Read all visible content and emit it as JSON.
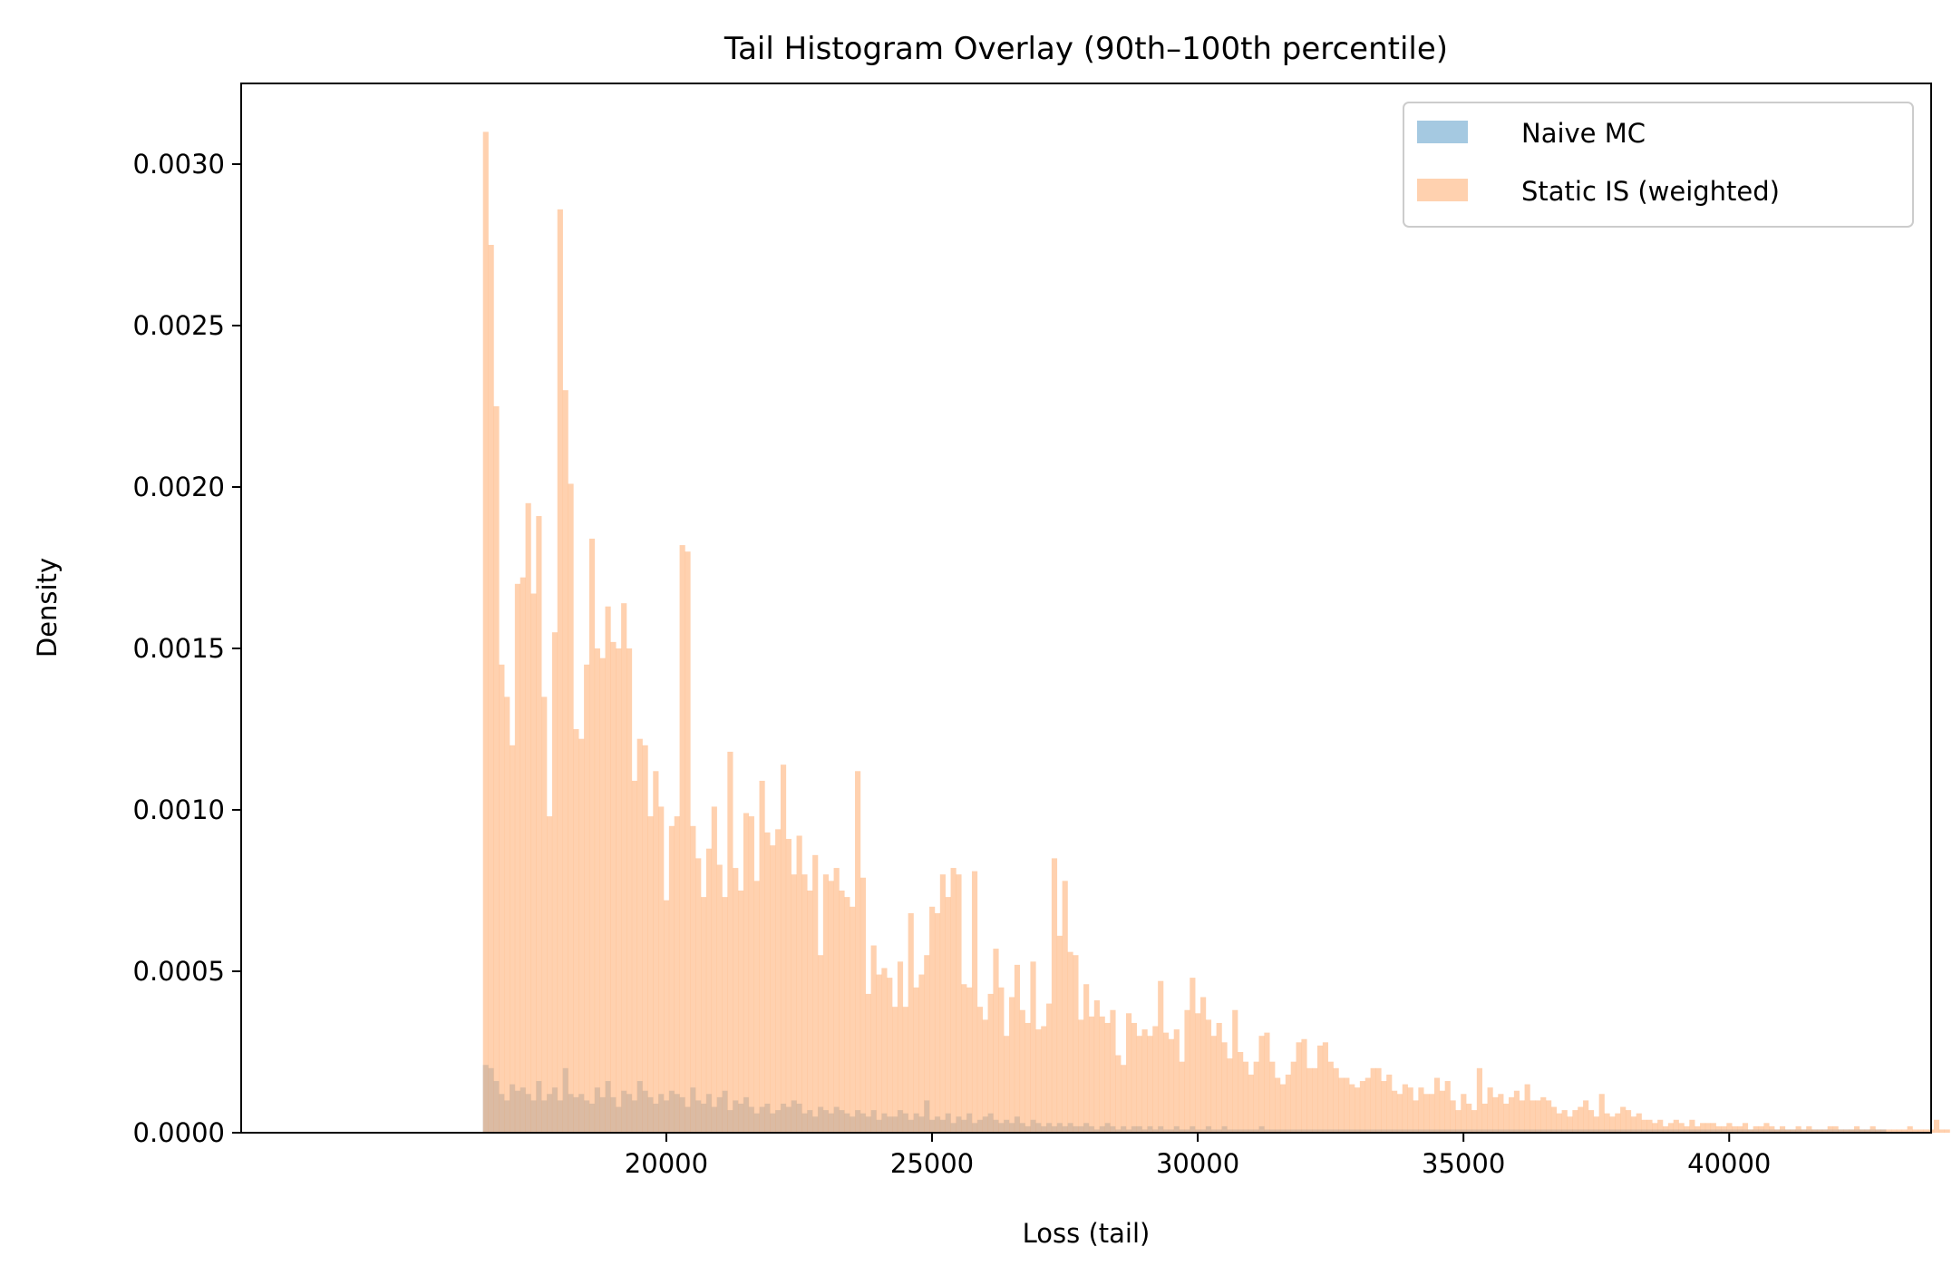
{
  "chart_data": {
    "type": "bar",
    "title": "Tail Histogram Overlay (90th–100th percentile)",
    "xlabel": "Loss (tail)",
    "ylabel": "Density",
    "xlim": [
      12000,
      43800
    ],
    "ylim": [
      0,
      0.00325
    ],
    "xticks": [
      20000,
      25000,
      30000,
      35000,
      40000
    ],
    "xtick_labels": [
      "20000",
      "25000",
      "30000",
      "35000",
      "40000"
    ],
    "yticks": [
      0,
      0.0005,
      0.001,
      0.0015,
      0.002,
      0.0025,
      0.003
    ],
    "ytick_labels": [
      "0.0000",
      "0.0005",
      "0.0010",
      "0.0015",
      "0.0020",
      "0.0025",
      "0.0030"
    ],
    "grid": false,
    "legend_position": "top-right",
    "bin_width": 100,
    "series": [
      {
        "name": "Naive MC",
        "color": "#1f77b4",
        "opacity": 0.4,
        "x_start": 16550,
        "values": [
          0.00021,
          0.0002,
          0.00016,
          0.00012,
          0.0001,
          0.00015,
          0.00013,
          0.00014,
          0.00012,
          0.0001,
          0.00016,
          0.0001,
          0.00012,
          0.00014,
          0.0001,
          0.0002,
          0.00012,
          0.00011,
          0.00012,
          0.0001,
          9e-05,
          0.00014,
          0.00011,
          0.00016,
          0.00011,
          8e-05,
          0.00013,
          0.00012,
          0.0001,
          0.00016,
          0.00013,
          0.00011,
          9e-05,
          0.00012,
          0.0001,
          0.00013,
          0.00012,
          0.00011,
          8e-05,
          0.00014,
          0.0001,
          9e-05,
          0.00012,
          8e-05,
          0.00011,
          0.00013,
          7e-05,
          0.0001,
          9e-05,
          0.00011,
          8e-05,
          6e-05,
          8e-05,
          9e-05,
          6e-05,
          7e-05,
          9e-05,
          8e-05,
          0.0001,
          9e-05,
          6e-05,
          7e-05,
          5e-05,
          8e-05,
          7e-05,
          6e-05,
          8e-05,
          7e-05,
          6e-05,
          5e-05,
          7e-05,
          6e-05,
          5e-05,
          7e-05,
          4e-05,
          6e-05,
          5e-05,
          5e-05,
          7e-05,
          6e-05,
          4e-05,
          6e-05,
          5e-05,
          0.0001,
          4e-05,
          5e-05,
          4e-05,
          6e-05,
          3e-05,
          5e-05,
          4e-05,
          6e-05,
          3e-05,
          4e-05,
          5e-05,
          6e-05,
          4e-05,
          3e-05,
          4e-05,
          3e-05,
          5e-05,
          3e-05,
          2e-05,
          4e-05,
          3e-05,
          2e-05,
          3e-05,
          2e-05,
          3e-05,
          2e-05,
          3e-05,
          2e-05,
          2e-05,
          3e-05,
          2e-05,
          1e-05,
          2e-05,
          3e-05,
          2e-05,
          1e-05,
          2e-05,
          1e-05,
          2e-05,
          2e-05,
          1e-05,
          2e-05,
          1e-05,
          2e-05,
          1e-05,
          1e-05,
          2e-05,
          1e-05,
          1e-05,
          2e-05,
          1e-05,
          1e-05,
          2e-05,
          1e-05,
          1e-05,
          2e-05,
          1e-05,
          1e-05,
          1e-05,
          1e-05,
          1e-05,
          1e-05,
          2e-05,
          1e-05,
          1e-05,
          1e-05,
          1e-05,
          1e-05,
          1e-05,
          1e-05,
          1e-05,
          1e-05,
          1e-05,
          1e-05,
          1e-05,
          1e-05,
          1e-05,
          1e-05,
          1e-05,
          1e-05,
          1e-05,
          1e-05,
          1e-05,
          1e-05,
          1e-05,
          1e-05,
          1e-05,
          1e-05,
          1e-05,
          1e-05,
          1e-05,
          1e-05,
          1e-05,
          1e-05,
          1e-05,
          1e-05,
          1e-05,
          1e-05,
          1e-05,
          1e-05,
          1e-05,
          1e-05,
          1e-05,
          1e-05,
          1e-05,
          1e-05,
          1e-05,
          1e-05,
          1e-05,
          1e-05,
          1e-05,
          1e-05,
          1e-05,
          1e-05,
          1e-05,
          1e-05,
          1e-05,
          1e-05,
          1e-05,
          1e-05,
          1e-05,
          1e-05,
          1e-05,
          1e-05,
          1e-05,
          1e-05,
          1e-05,
          1e-05,
          1e-05,
          1e-05,
          1e-05,
          1e-05,
          1e-05,
          1e-05,
          1e-05,
          1e-05,
          1e-05,
          1e-05,
          1e-05,
          1e-05,
          1e-05,
          1e-05,
          1e-05,
          1e-05,
          1e-05,
          1e-05,
          1e-05,
          1e-05,
          1e-05,
          1e-05,
          1e-05,
          1e-05,
          1e-05,
          1e-05,
          1e-05,
          1e-05,
          1e-05,
          1e-05,
          1e-05,
          1e-05,
          1e-05,
          1e-05,
          1e-05,
          1e-05,
          1e-05,
          1e-05,
          1e-05,
          1e-05,
          1e-05,
          1e-05,
          1e-05,
          1e-05,
          1e-05,
          1e-05,
          1e-05,
          1e-05,
          1e-05,
          1e-05,
          1e-05,
          1e-05
        ]
      },
      {
        "name": "Static IS (weighted)",
        "color": "#ffb27a",
        "opacity": 0.6,
        "x_start": 16550,
        "values": [
          0.0031,
          0.00275,
          0.00225,
          0.00145,
          0.00135,
          0.0012,
          0.0017,
          0.00172,
          0.00195,
          0.00167,
          0.00191,
          0.00135,
          0.00098,
          0.00155,
          0.00286,
          0.0023,
          0.00201,
          0.00125,
          0.00122,
          0.00145,
          0.00184,
          0.0015,
          0.00147,
          0.00163,
          0.00152,
          0.0015,
          0.00164,
          0.0015,
          0.00109,
          0.00122,
          0.0012,
          0.00098,
          0.00112,
          0.00101,
          0.00072,
          0.00095,
          0.00098,
          0.00182,
          0.0018,
          0.00095,
          0.00085,
          0.00073,
          0.00088,
          0.00101,
          0.00083,
          0.00073,
          0.00118,
          0.00082,
          0.00075,
          0.00099,
          0.00098,
          0.00078,
          0.00109,
          0.00093,
          0.00089,
          0.00094,
          0.00114,
          0.00091,
          0.0008,
          0.00092,
          0.0008,
          0.00075,
          0.00086,
          0.00055,
          0.0008,
          0.00078,
          0.00082,
          0.00075,
          0.00073,
          0.0007,
          0.00112,
          0.00079,
          0.00043,
          0.00058,
          0.00049,
          0.00051,
          0.00048,
          0.00039,
          0.00053,
          0.00039,
          0.00068,
          0.00045,
          0.00049,
          0.00055,
          0.0007,
          0.00068,
          0.0008,
          0.00073,
          0.00082,
          0.0008,
          0.00046,
          0.00045,
          0.00081,
          0.00039,
          0.00035,
          0.00043,
          0.00057,
          0.00045,
          0.0003,
          0.00042,
          0.00052,
          0.00038,
          0.00034,
          0.00053,
          0.00032,
          0.00033,
          0.0004,
          0.00085,
          0.00061,
          0.00078,
          0.00056,
          0.00055,
          0.00035,
          0.00046,
          0.00036,
          0.00041,
          0.00036,
          0.00034,
          0.00038,
          0.00024,
          0.00021,
          0.00037,
          0.00034,
          0.0003,
          0.00032,
          0.0003,
          0.00033,
          0.00047,
          0.00031,
          0.00029,
          0.00032,
          0.00022,
          0.00038,
          0.00048,
          0.00037,
          0.00042,
          0.00035,
          0.0003,
          0.00034,
          0.00028,
          0.00023,
          0.00038,
          0.00025,
          0.00022,
          0.00018,
          0.00022,
          0.0003,
          0.00031,
          0.00022,
          0.00017,
          0.00015,
          0.00018,
          0.00022,
          0.00028,
          0.00029,
          0.0002,
          0.0002,
          0.00027,
          0.00028,
          0.00022,
          0.0002,
          0.00017,
          0.00017,
          0.00015,
          0.00014,
          0.00016,
          0.00017,
          0.0002,
          0.0002,
          0.00016,
          0.00018,
          0.00013,
          0.00012,
          0.00015,
          0.00014,
          0.0001,
          0.00014,
          0.00012,
          0.00012,
          0.00017,
          0.00013,
          0.00016,
          0.0001,
          7e-05,
          0.00012,
          9e-05,
          7e-05,
          0.0002,
          9e-05,
          0.00014,
          0.00011,
          0.00012,
          9e-05,
          0.00011,
          0.00013,
          0.0001,
          0.00015,
          0.0001,
          0.0001,
          0.00011,
          0.0001,
          8e-05,
          6e-05,
          7e-05,
          5e-05,
          7e-05,
          8e-05,
          0.0001,
          7e-05,
          5e-05,
          0.00012,
          6e-05,
          5e-05,
          6e-05,
          8e-05,
          7e-05,
          5e-05,
          6e-05,
          4e-05,
          4e-05,
          3e-05,
          4e-05,
          2e-05,
          3e-05,
          4e-05,
          3e-05,
          2e-05,
          4e-05,
          2e-05,
          3e-05,
          3e-05,
          3e-05,
          2e-05,
          2e-05,
          3e-05,
          2e-05,
          2e-05,
          3e-05,
          1e-05,
          2e-05,
          2e-05,
          3e-05,
          2e-05,
          1e-05,
          2e-05,
          1e-05,
          1e-05,
          2e-05,
          1e-05,
          2e-05,
          1e-05,
          1e-05,
          1e-05,
          2e-05,
          2e-05,
          1e-05,
          1e-05,
          1e-05,
          2e-05,
          1e-05,
          1e-05,
          2e-05,
          1e-05,
          1e-05,
          1e-05,
          1e-05,
          1e-05,
          1e-05,
          2e-05,
          1e-05,
          1e-05,
          1e-05,
          1e-05,
          4e-05,
          1e-05,
          1e-05
        ]
      }
    ]
  }
}
